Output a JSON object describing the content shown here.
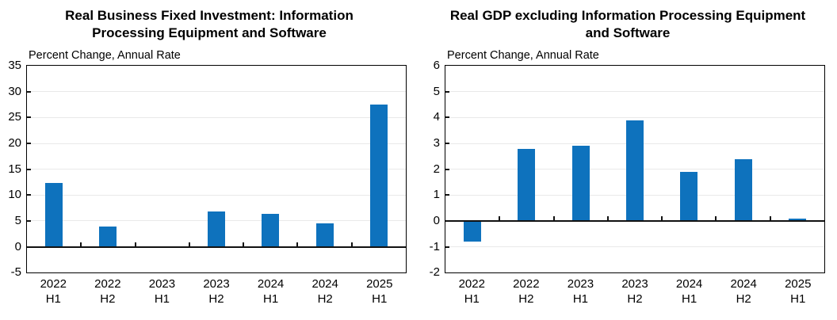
{
  "figure": {
    "background": "#ffffff",
    "axis_color": "#000000",
    "grid_color": "#e9e9e9"
  },
  "chart_data": [
    {
      "type": "bar",
      "title": "Real Business Fixed Investment: Information Processing Equipment and Software",
      "axis_note": "Percent Change, Annual Rate",
      "categories": [
        "2022 H1",
        "2022 H2",
        "2023 H1",
        "2023 H2",
        "2024 H1",
        "2024 H2",
        "2025 H1"
      ],
      "values": [
        12.4,
        3.9,
        0.1,
        6.9,
        6.3,
        4.5,
        27.5
      ],
      "ylim": [
        -5,
        35
      ],
      "ytick_step": 5,
      "ytick_labels": [
        "35",
        "30",
        "25",
        "20",
        "15",
        "10",
        "5",
        "0",
        "-5"
      ],
      "bar_color": "#0e72bd",
      "grid": true,
      "legend_position": "none"
    },
    {
      "type": "bar",
      "title": "Real GDP excluding Information Processing Equipment and Software",
      "axis_note": "Percent Change, Annual Rate",
      "categories": [
        "2022 H1",
        "2022 H2",
        "2023 H1",
        "2023 H2",
        "2024 H1",
        "2024 H2",
        "2025 H1"
      ],
      "values": [
        -0.8,
        2.8,
        2.9,
        3.9,
        1.9,
        2.4,
        0.1
      ],
      "ylim": [
        -2,
        6
      ],
      "ytick_step": 1,
      "ytick_labels": [
        "6",
        "5",
        "4",
        "3",
        "2",
        "1",
        "0",
        "-1",
        "-2"
      ],
      "bar_color": "#0e72bd",
      "grid": true,
      "legend_position": "none"
    }
  ]
}
